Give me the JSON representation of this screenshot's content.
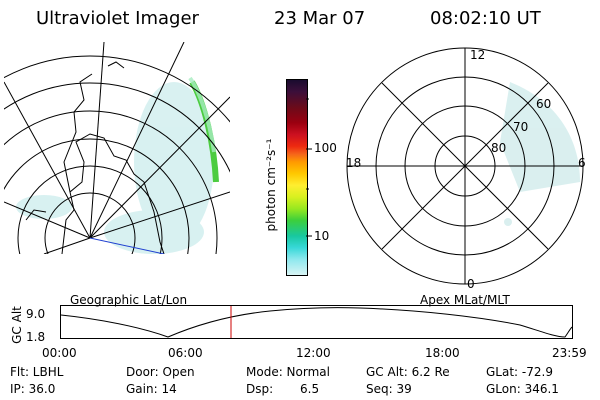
{
  "header": {
    "title": "Ultraviolet Imager",
    "date": "23 Mar 07",
    "time": "08:02:10 UT"
  },
  "colorbar": {
    "label": "photon cm⁻²s⁻¹",
    "ticks": [
      "100",
      "10"
    ],
    "colors": [
      "#1a0b2e",
      "#3c0f3a",
      "#6b0b1a",
      "#9b0010",
      "#cc1020",
      "#ee2a10",
      "#f5651a",
      "#ff9a00",
      "#ffc800",
      "#ffee30",
      "#d8f020",
      "#98e820",
      "#3ccf3c",
      "#18c8a0",
      "#38d8d8",
      "#8ee8ee",
      "#d8f4f4"
    ]
  },
  "geo_panel": {
    "caption": "Geographic Lat/Lon"
  },
  "polar_panel": {
    "caption": "Apex MLat/MLT",
    "mlt_labels": {
      "top": "12",
      "bottom": "0",
      "left": "18",
      "right": "6"
    },
    "lat_labels": [
      "60",
      "70",
      "80"
    ]
  },
  "altitude_plot": {
    "ylabel": "GC Alt",
    "ytick_top": "9.0",
    "ytick_bottom": "1.8",
    "xticks": [
      "00:00",
      "06:00",
      "12:00",
      "18:00",
      "23:59"
    ],
    "marker_color": "#cc0000"
  },
  "info": {
    "row1": {
      "filter": "Flt: LBHL",
      "door": "Door: Open",
      "mode": "Mode: Normal",
      "gc_alt": "GC Alt: 6.2 Re",
      "glat": "GLat: -72.9"
    },
    "row2": {
      "ip": "IP: 36.0",
      "gain": "Gain: 14",
      "dsp_label": "Dsp:",
      "dsp_value": "6.5",
      "seq": "Seq: 39",
      "glon": "GLon: 346.1"
    }
  }
}
